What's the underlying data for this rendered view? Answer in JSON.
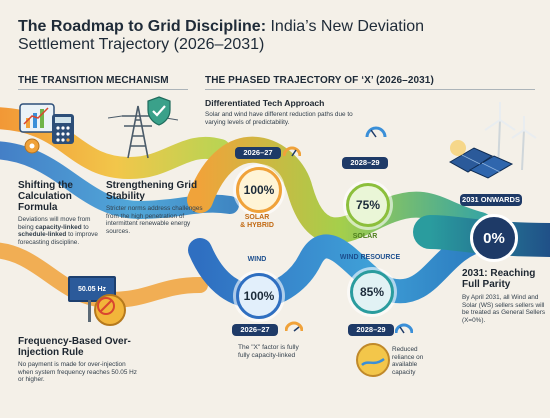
{
  "title": {
    "bold": "The Roadmap to Grid Discipline:",
    "normal": " India’s New Deviation Settlement Trajectory (2026–2031)"
  },
  "sections": {
    "left": "THE TRANSITION MECHANISM",
    "right": "THE PHASED TRAJECTORY OF ‘X’ (2026–2031)"
  },
  "blocks": {
    "shifting": {
      "heading": "Shifting the Calculation Formula",
      "text_pre": "Deviations will move from being ",
      "text_b1": "capacity-linked",
      "text_mid": " to ",
      "text_b2": "schedule-linked",
      "text_post": " to improve forecasting discipline."
    },
    "strengthening": {
      "heading": "Strengthening Grid Stability",
      "text": "Stricter norms address challenges from the high penetration of intermittent renewable energy sources."
    },
    "frequency": {
      "heading": "Frequency-Based Over-Injection Rule",
      "text": "No payment is made for over-injection when system frequency reaches 50.05 Hz or higher.",
      "display": "50.05 Hz"
    },
    "differentiated": {
      "heading": "Differentiated Tech Approach",
      "text": "Solar and wind have different reduction paths due to varying levels of predictability."
    },
    "parity": {
      "heading": "2031: Reaching Full Parity",
      "text": "By April 2031, all Wind and Solar (WS) sellers sellers will be treated as General Sellers (X=0%)."
    }
  },
  "trajectory": {
    "solar_top": {
      "year": "2026–27",
      "value": "100%",
      "label": "SOLAR\n& HYBRID"
    },
    "solar_mid": {
      "year": "2028–29",
      "value": "75%",
      "label": "SOLAR"
    },
    "wind_bottom": {
      "year": "2026–27",
      "value": "100%",
      "label": "WIND"
    },
    "wind_mid": {
      "year": "2028–29",
      "value": "85%",
      "label": "WIND RESOURCE"
    },
    "final": {
      "year": "2031 ONWARDS",
      "value": "0%"
    }
  },
  "notes": {
    "x_factor": "The \"X\" factor is fully fully capacity-linked",
    "reduced": "Reduced reliance on available capacity"
  },
  "colors": {
    "solar_stream": "#f0a23a",
    "wind_stream": "#3a8fd8",
    "green_stream": "#9ec94a",
    "teal_stream": "#2f9aa5",
    "navy": "#1e3a67"
  },
  "icons": [
    "chart-calculator-icon",
    "gear-icon",
    "transmission-tower-icon",
    "shield-check-icon",
    "warning-icon",
    "gauge-icon",
    "solar-panel-icon",
    "wind-turbine-icon"
  ]
}
